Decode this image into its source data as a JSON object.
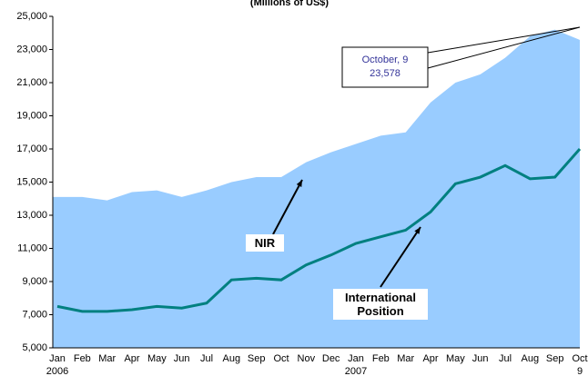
{
  "chart_data": {
    "type": "area_line",
    "title": "(Millions of US$)",
    "categories": [
      "Jan",
      "Feb",
      "Mar",
      "Apr",
      "May",
      "Jun",
      "Jul",
      "Aug",
      "Sep",
      "Oct",
      "Nov",
      "Dec",
      "Jan",
      "Feb",
      "Mar",
      "Apr",
      "May",
      "Jun",
      "Jul",
      "Aug",
      "Sep",
      "Oct"
    ],
    "category_sublabels": [
      "2006",
      null,
      null,
      null,
      null,
      null,
      null,
      null,
      null,
      null,
      null,
      null,
      "2007",
      null,
      null,
      null,
      null,
      null,
      null,
      null,
      null,
      "9"
    ],
    "series": [
      {
        "name": "NIR",
        "color": "#99ccff",
        "values": [
          14100,
          14100,
          13900,
          14400,
          14500,
          14100,
          14500,
          15000,
          15300,
          15300,
          16200,
          16800,
          17300,
          17800,
          18000,
          19800,
          21000,
          21500,
          22500,
          23800,
          24200,
          23578
        ]
      },
      {
        "name": "International Position",
        "color": "#008080",
        "values": [
          7500,
          7200,
          7200,
          7300,
          7500,
          7400,
          7700,
          9100,
          9200,
          9100,
          10000,
          10600,
          11300,
          11700,
          12100,
          13200,
          14900,
          15300,
          16000,
          15200,
          15300,
          17000
        ]
      }
    ],
    "annotation": {
      "date": "October, 9",
      "value": "23,578"
    },
    "ylim": [
      5000,
      25000
    ],
    "yticks": [
      {
        "value": 5000,
        "label": "5,000"
      },
      {
        "value": 7000,
        "label": "7,000"
      },
      {
        "value": 9000,
        "label": "9,000"
      },
      {
        "value": 11000,
        "label": "11,000"
      },
      {
        "value": 13000,
        "label": "13,000"
      },
      {
        "value": 15000,
        "label": "15,000"
      },
      {
        "value": 17000,
        "label": "17,000"
      },
      {
        "value": 19000,
        "label": "19,000"
      },
      {
        "value": 21000,
        "label": "21,000"
      },
      {
        "value": 23000,
        "label": "23,000"
      },
      {
        "value": 25000,
        "label": "25,000"
      }
    ]
  }
}
